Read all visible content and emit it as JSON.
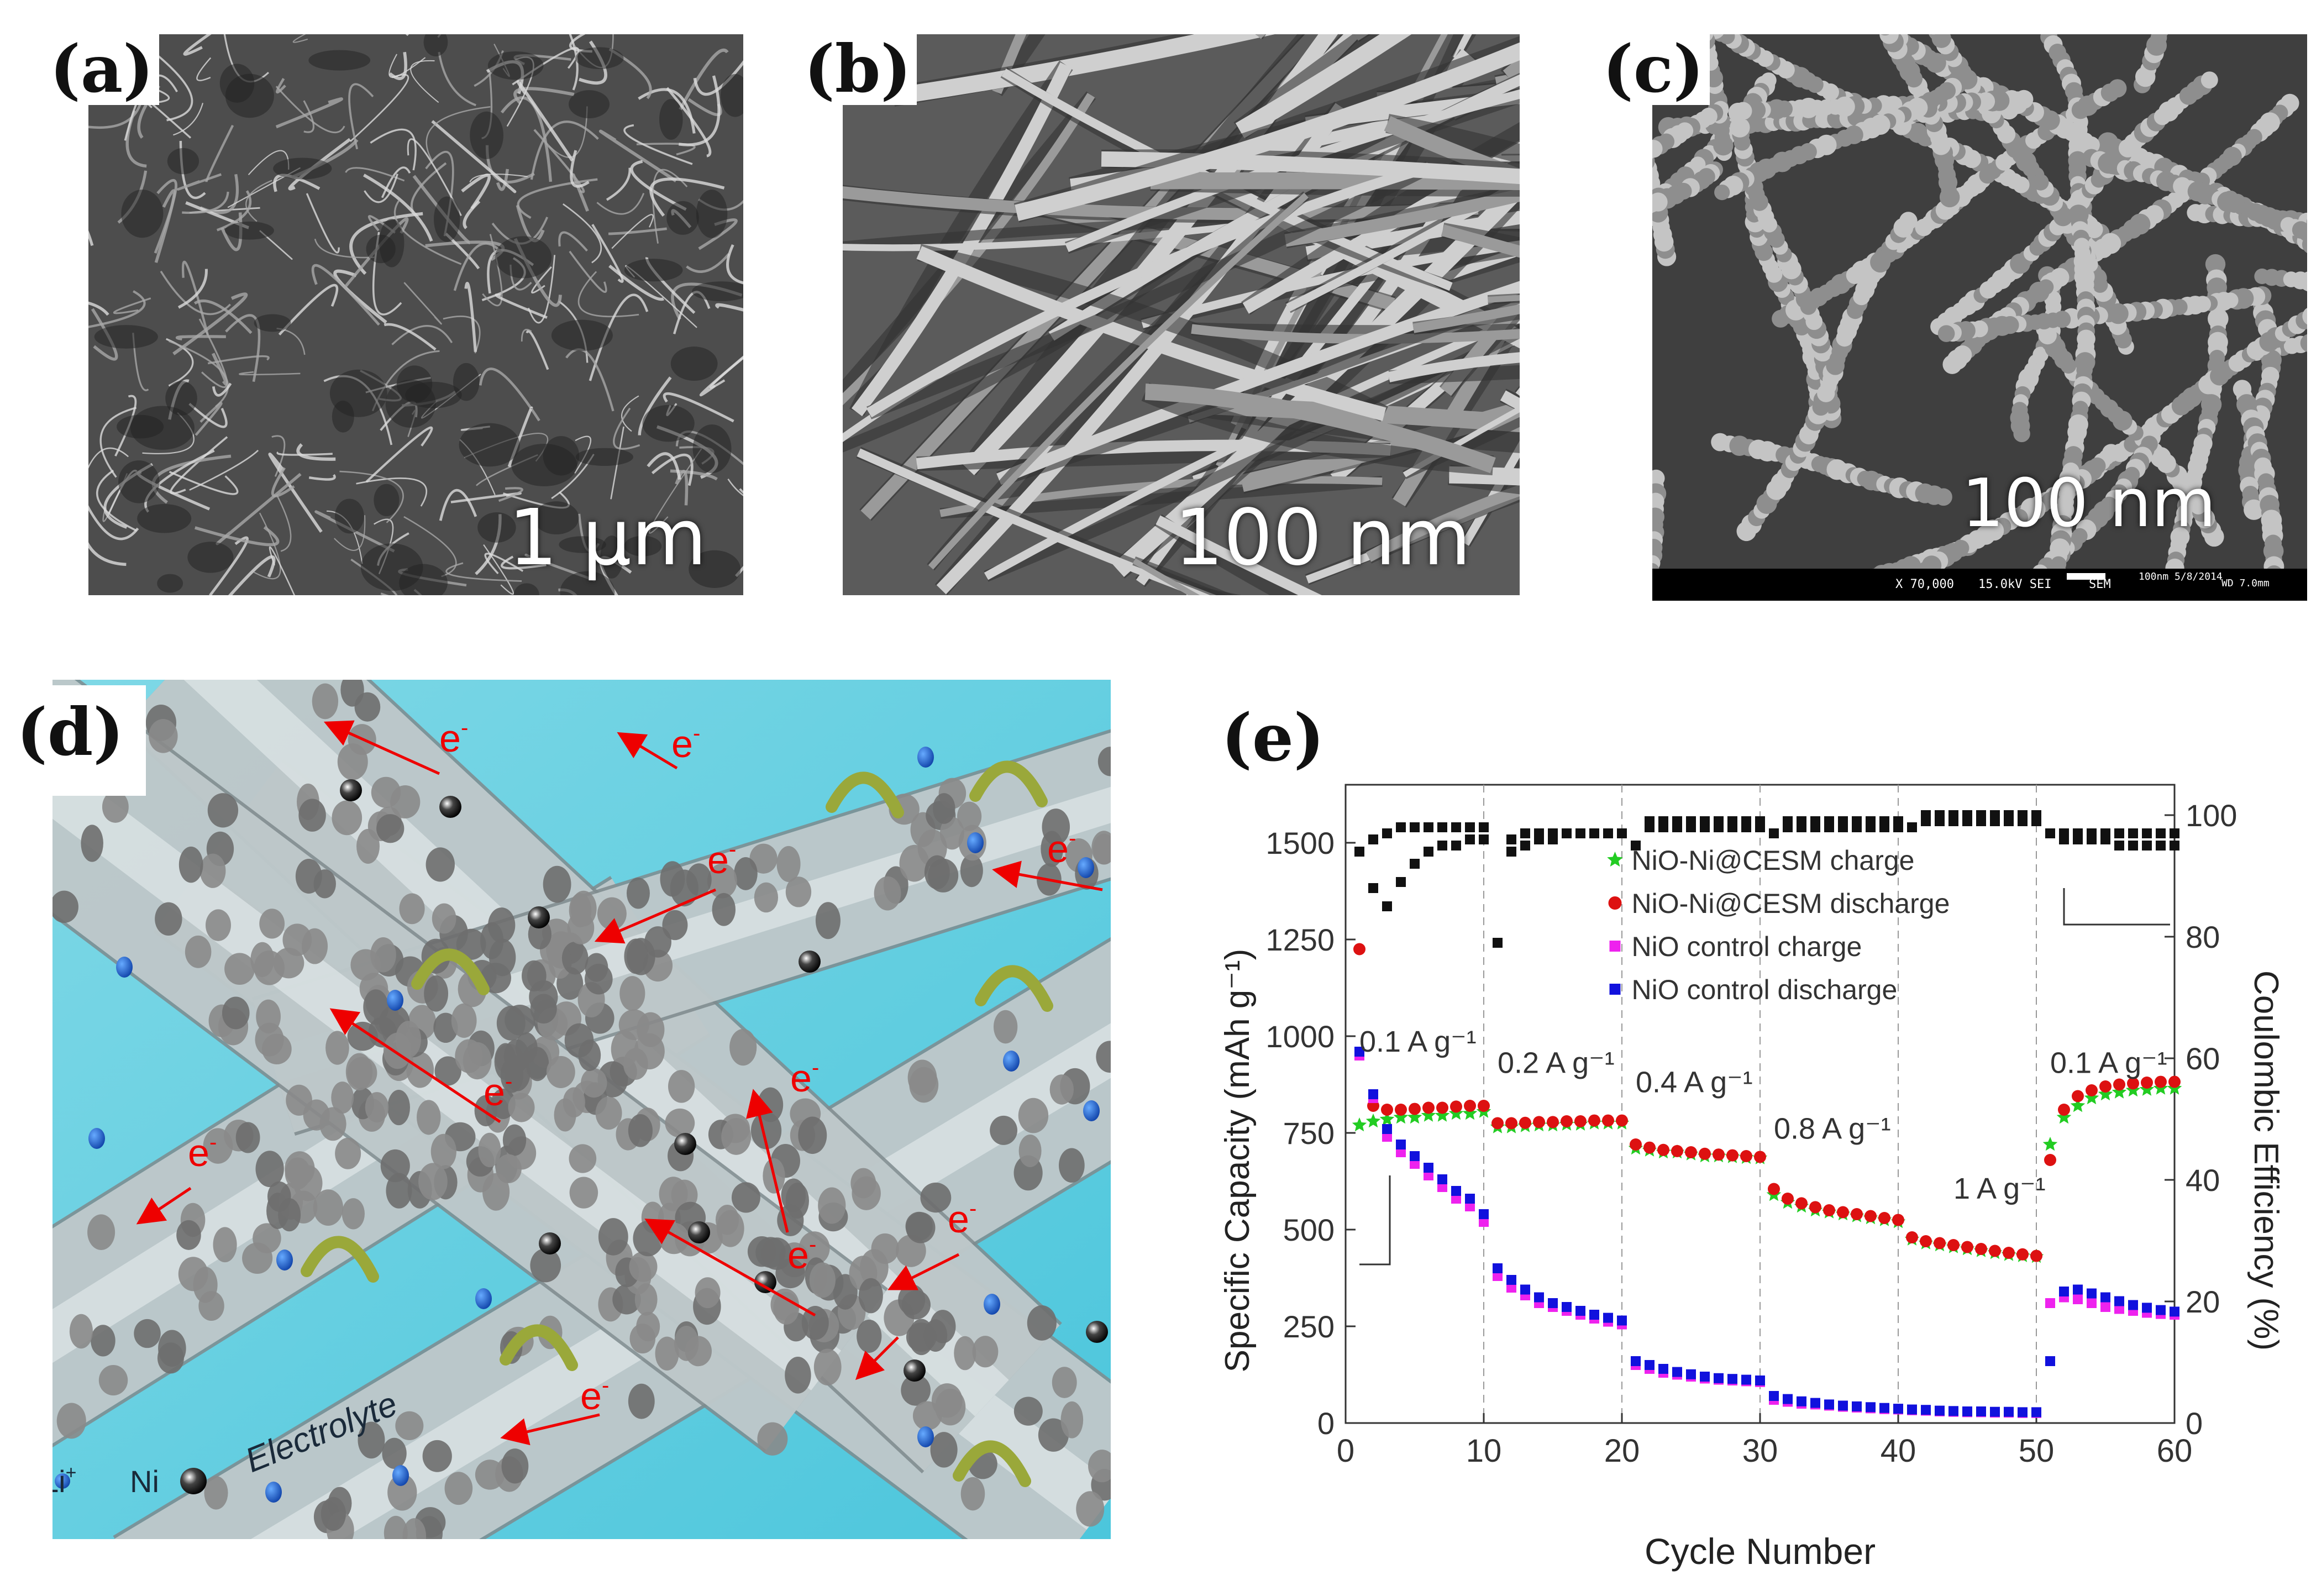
{
  "panels": {
    "a": {
      "letter": "(a)",
      "scale": "1 μm"
    },
    "b": {
      "letter": "(b)",
      "scale": "100 nm"
    },
    "c": {
      "letter": "(c)",
      "scale": "100 nm",
      "infobar": [
        "X 70,000",
        "15.0kV SEI",
        "SEM",
        "WD 7.0mm",
        "100nm 5/8/2014"
      ]
    },
    "d": {
      "letter": "(d)",
      "electron": "e",
      "electron_sup": "-",
      "electrolyte": "Electrolyte",
      "li_label": "Li",
      "li_sup": "+",
      "ni_label": "Ni"
    },
    "e": {
      "letter": "(e)"
    }
  },
  "chart_data": {
    "type": "scatter",
    "xlabel": "Cycle Number",
    "ylabel": "Specific Capacity (mAh g⁻¹)",
    "y2label": "Coulombic Efficiency (%)",
    "xlim": [
      0,
      60
    ],
    "ylim": [
      0,
      1650
    ],
    "y2lim": [
      0,
      105
    ],
    "xticks": [
      "0",
      "10",
      "20",
      "30",
      "40",
      "50",
      "60"
    ],
    "yticks": [
      "0",
      "250",
      "500",
      "750",
      "1000",
      "1250",
      "1500"
    ],
    "y2ticks": [
      "0",
      "20",
      "40",
      "60",
      "80",
      "100"
    ],
    "rate_labels": [
      "0.1 A g⁻¹",
      "0.2 A g⁻¹",
      "0.4 A g⁻¹",
      "0.8 A g⁻¹",
      "1 A g⁻¹",
      "0.1 A g⁻¹"
    ],
    "series": [
      {
        "name": "NiO-Ni@CESM charge",
        "color": "#22cc22",
        "marker": "star",
        "x": [
          1,
          2,
          3,
          4,
          5,
          6,
          7,
          8,
          9,
          10,
          11,
          12,
          13,
          14,
          15,
          16,
          17,
          18,
          19,
          20,
          21,
          22,
          23,
          24,
          25,
          26,
          27,
          28,
          29,
          30,
          31,
          32,
          33,
          34,
          35,
          36,
          37,
          38,
          39,
          40,
          41,
          42,
          43,
          44,
          45,
          46,
          47,
          48,
          49,
          50,
          51,
          52,
          53,
          54,
          55,
          56,
          57,
          58,
          59,
          60
        ],
        "y": [
          770,
          780,
          785,
          790,
          790,
          795,
          795,
          800,
          800,
          805,
          765,
          765,
          768,
          770,
          770,
          772,
          772,
          775,
          775,
          775,
          710,
          705,
          700,
          700,
          695,
          690,
          690,
          688,
          686,
          685,
          590,
          570,
          560,
          550,
          545,
          540,
          535,
          530,
          525,
          520,
          475,
          465,
          460,
          455,
          450,
          445,
          440,
          435,
          432,
          430,
          720,
          790,
          820,
          840,
          850,
          855,
          860,
          862,
          865,
          865
        ]
      },
      {
        "name": "NiO-Ni@CESM discharge",
        "color": "#dd1111",
        "marker": "circle",
        "x": [
          1,
          2,
          3,
          4,
          5,
          6,
          7,
          8,
          9,
          10,
          11,
          12,
          13,
          14,
          15,
          16,
          17,
          18,
          19,
          20,
          21,
          22,
          23,
          24,
          25,
          26,
          27,
          28,
          29,
          30,
          31,
          32,
          33,
          34,
          35,
          36,
          37,
          38,
          39,
          40,
          41,
          42,
          43,
          44,
          45,
          46,
          47,
          48,
          49,
          50,
          51,
          52,
          53,
          54,
          55,
          56,
          57,
          58,
          59,
          60
        ],
        "y": [
          1225,
          820,
          810,
          810,
          812,
          815,
          815,
          818,
          820,
          820,
          775,
          775,
          776,
          778,
          778,
          780,
          780,
          782,
          782,
          782,
          720,
          712,
          706,
          703,
          700,
          696,
          694,
          692,
          690,
          688,
          605,
          580,
          568,
          558,
          550,
          545,
          540,
          535,
          530,
          525,
          480,
          470,
          465,
          460,
          455,
          450,
          445,
          440,
          436,
          432,
          680,
          810,
          845,
          860,
          870,
          875,
          878,
          880,
          882,
          882
        ]
      },
      {
        "name": "NiO control charge",
        "color": "#ee22ee",
        "marker": "square",
        "x": [
          1,
          2,
          3,
          4,
          5,
          6,
          7,
          8,
          9,
          10,
          11,
          12,
          13,
          14,
          15,
          16,
          17,
          18,
          19,
          20,
          21,
          22,
          23,
          24,
          25,
          26,
          27,
          28,
          29,
          30,
          31,
          32,
          33,
          34,
          35,
          36,
          37,
          38,
          39,
          40,
          41,
          42,
          43,
          44,
          45,
          46,
          47,
          48,
          49,
          50,
          51,
          52,
          53,
          54,
          55,
          56,
          57,
          58,
          59,
          60
        ],
        "y": [
          950,
          840,
          740,
          700,
          670,
          640,
          610,
          580,
          560,
          520,
          380,
          350,
          330,
          310,
          300,
          290,
          280,
          270,
          262,
          255,
          150,
          140,
          130,
          125,
          120,
          115,
          112,
          110,
          108,
          106,
          60,
          55,
          50,
          48,
          45,
          42,
          40,
          38,
          36,
          35,
          33,
          32,
          30,
          29,
          28,
          28,
          27,
          27,
          26,
          26,
          310,
          325,
          320,
          310,
          300,
          295,
          290,
          285,
          282,
          280
        ]
      },
      {
        "name": "NiO control discharge",
        "color": "#1111dd",
        "marker": "square",
        "x": [
          1,
          2,
          3,
          4,
          5,
          6,
          7,
          8,
          9,
          10,
          11,
          12,
          13,
          14,
          15,
          16,
          17,
          18,
          19,
          20,
          21,
          22,
          23,
          24,
          25,
          26,
          27,
          28,
          29,
          30,
          31,
          32,
          33,
          34,
          35,
          36,
          37,
          38,
          39,
          40,
          41,
          42,
          43,
          44,
          45,
          46,
          47,
          48,
          49,
          50,
          51,
          52,
          53,
          54,
          55,
          56,
          57,
          58,
          59,
          60
        ],
        "y": [
          960,
          850,
          760,
          720,
          690,
          660,
          630,
          600,
          580,
          540,
          400,
          370,
          345,
          325,
          310,
          300,
          290,
          280,
          272,
          265,
          160,
          150,
          140,
          132,
          126,
          120,
          116,
          114,
          112,
          110,
          70,
          62,
          56,
          52,
          48,
          45,
          43,
          41,
          39,
          37,
          35,
          34,
          32,
          31,
          30,
          30,
          29,
          29,
          28,
          28,
          160,
          340,
          345,
          335,
          325,
          315,
          305,
          298,
          292,
          288
        ]
      },
      {
        "name": "",
        "color": "#111111",
        "marker": "square",
        "axis": "y2",
        "x": [
          1,
          2,
          3,
          4,
          5,
          6,
          7,
          8,
          9,
          10,
          11,
          12,
          13,
          14,
          15,
          16,
          17,
          18,
          19,
          20,
          21,
          22,
          23,
          24,
          25,
          26,
          27,
          28,
          29,
          30,
          31,
          32,
          33,
          34,
          35,
          36,
          37,
          38,
          39,
          40,
          41,
          42,
          43,
          44,
          45,
          46,
          47,
          48,
          49,
          50,
          51,
          52,
          53,
          54,
          55,
          56,
          57,
          58,
          59,
          60
        ],
        "y": [
          94,
          88,
          85,
          89,
          92,
          94,
          95,
          95,
          96,
          96,
          79,
          96,
          97,
          97,
          97,
          97,
          97,
          97,
          97,
          97,
          95,
          98,
          98,
          98,
          98,
          98,
          98,
          98,
          98,
          98,
          97,
          98,
          98,
          98,
          98,
          98,
          98,
          98,
          98,
          98,
          98,
          99,
          99,
          99,
          99,
          99,
          99,
          99,
          99,
          99,
          97,
          97,
          97,
          97,
          97,
          97,
          97,
          97,
          97,
          97
        ]
      },
      {
        "name": "",
        "color": "#111111",
        "marker": "square",
        "axis": "y2",
        "x": [
          2,
          3,
          4,
          5,
          6,
          7,
          8,
          9,
          10,
          12,
          13,
          14,
          15,
          16,
          17,
          18,
          19,
          20,
          22,
          23,
          24,
          25,
          26,
          27,
          28,
          29,
          30,
          32,
          33,
          34,
          35,
          36,
          37,
          38,
          39,
          40,
          42,
          43,
          44,
          45,
          46,
          47,
          48,
          49,
          50,
          52,
          53,
          54,
          55,
          56,
          57,
          58,
          59,
          60
        ],
        "y": [
          96,
          97,
          98,
          98,
          98,
          98,
          98,
          98,
          98,
          94,
          95,
          96,
          96,
          97,
          97,
          97,
          97,
          97,
          99,
          99,
          99,
          99,
          99,
          99,
          99,
          99,
          99,
          99,
          99,
          99,
          99,
          99,
          99,
          99,
          99,
          99,
          100,
          100,
          100,
          100,
          100,
          100,
          100,
          100,
          100,
          96,
          96,
          96,
          96,
          95,
          95,
          95,
          95,
          95
        ]
      }
    ]
  }
}
